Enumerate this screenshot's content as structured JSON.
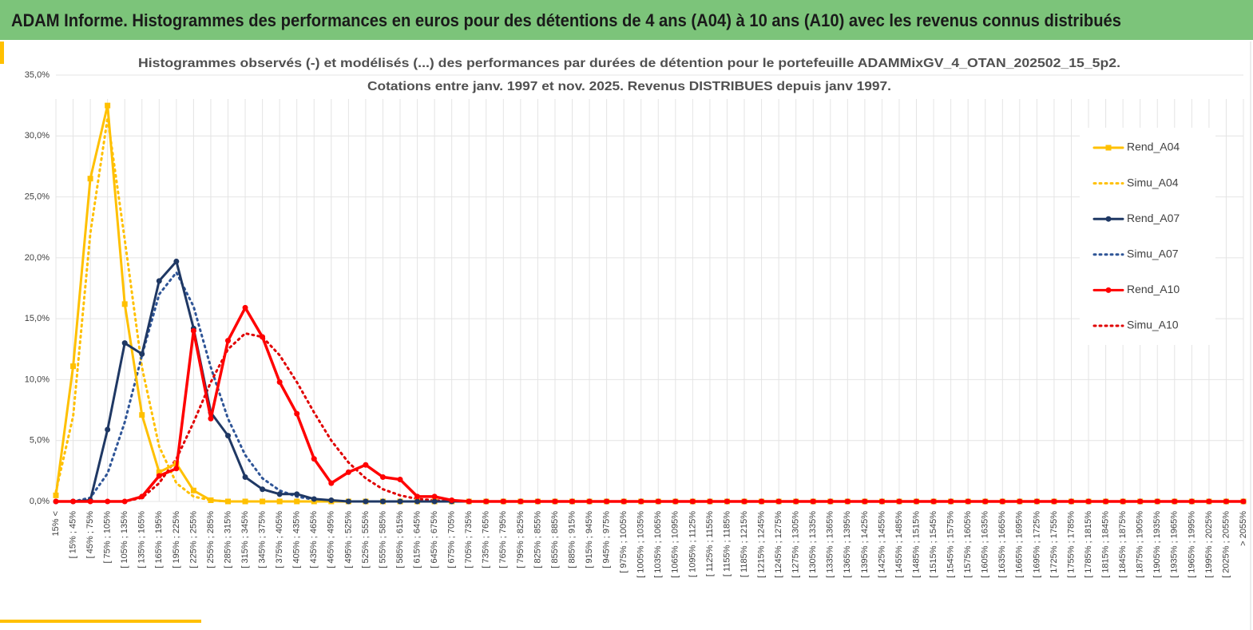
{
  "page_title": "ADAM Informe. Histogrammes des performances en euros pour des détentions de 4 ans (A04) à 10 ans (A10) avec les revenus connus distribués",
  "chart_data": {
    "type": "line",
    "title": "Histogrammes observés (-) et modélisés (...) des performances par durées de détention pour le portefeuille ADAMMixGV_4_OTAN_202502_15_5p2.",
    "subtitle": "Cotations entre janv. 1997 et nov. 2025. Revenus DISTRIBUES depuis janv 1997.",
    "categories": [
      "15% <",
      "[ 15% ; 45%",
      "[ 45% ; 75%",
      "[ 75% ; 105%",
      "[ 105% ; 135%",
      "[ 135% ; 165%",
      "[ 165% ; 195%",
      "[ 195% ; 225%",
      "[ 225% ; 255%",
      "[ 255% ; 285%",
      "[ 285% ; 315%",
      "[ 315% ; 345%",
      "[ 345% ; 375%",
      "[ 375% ; 405%",
      "[ 405% ; 435%",
      "[ 435% ; 465%",
      "[ 465% ; 495%",
      "[ 495% ; 525%",
      "[ 525% ; 555%",
      "[ 555% ; 585%",
      "[ 585% ; 615%",
      "[ 615% ; 645%",
      "[ 645% ; 675%",
      "[ 675% ; 705%",
      "[ 705% ; 735%",
      "[ 735% ; 765%",
      "[ 765% ; 795%",
      "[ 795% ; 825%",
      "[ 825% ; 855%",
      "[ 855% ; 885%",
      "[ 885% ; 915%",
      "[ 915% ; 945%",
      "[ 945% ; 975%",
      "[ 975% ; 1005%",
      "[ 1005% ; 1035%",
      "[ 1035% ; 1065%",
      "[ 1065% ; 1095%",
      "[ 1095% ; 1125%",
      "[ 1125% ; 1155%",
      "[ 1155% ; 1185%",
      "[ 1185% ; 1215%",
      "[ 1215% ; 1245%",
      "[ 1245% ; 1275%",
      "[ 1275% ; 1305%",
      "[ 1305% ; 1335%",
      "[ 1335% ; 1365%",
      "[ 1365% ; 1395%",
      "[ 1395% ; 1425%",
      "[ 1425% ; 1455%",
      "[ 1455% ; 1485%",
      "[ 1485% ; 1515%",
      "[ 1515% ; 1545%",
      "[ 1545% ; 1575%",
      "[ 1575% ; 1605%",
      "[ 1605% ; 1635%",
      "[ 1635% ; 1665%",
      "[ 1665% ; 1695%",
      "[ 1695% ; 1725%",
      "[ 1725% ; 1755%",
      "[ 1755% ; 1785%",
      "[ 1785% ; 1815%",
      "[ 1815% ; 1845%",
      "[ 1845% ; 1875%",
      "[ 1875% ; 1905%",
      "[ 1905% ; 1935%",
      "[ 1935% ; 1965%",
      "[ 1965% ; 1995%",
      "[ 1995% ; 2025%",
      "[ 2025% ; 2055%",
      "> 2055%"
    ],
    "series": [
      {
        "name": "Rend_A04",
        "color": "#ffc000",
        "dash": "solid",
        "marker": "square",
        "values": [
          0.5,
          11.1,
          26.5,
          32.5,
          16.2,
          7.1,
          2.4,
          3.1,
          0.9,
          0.1,
          0,
          0,
          0,
          0,
          0,
          0,
          0,
          0,
          0,
          0,
          0,
          0,
          0,
          0,
          0,
          0,
          0,
          0,
          0,
          0,
          0,
          0,
          0,
          0,
          0,
          0,
          0,
          0,
          0,
          0,
          0,
          0,
          0,
          0,
          0,
          0,
          0,
          0,
          0,
          0,
          0,
          0,
          0,
          0,
          0,
          0,
          0,
          0,
          0,
          0,
          0,
          0,
          0,
          0,
          0,
          0,
          0,
          0,
          0,
          0
        ]
      },
      {
        "name": "Simu_A04",
        "color": "#ffc000",
        "dash": "dotted",
        "marker": null,
        "values": [
          0.8,
          7,
          22,
          31.5,
          21.5,
          11,
          4.5,
          1.5,
          0.4,
          0.1,
          0,
          0,
          0,
          0,
          0,
          0,
          0,
          0,
          0,
          0,
          0,
          0,
          0,
          0,
          0,
          0,
          0,
          0,
          0,
          0,
          0,
          0,
          0,
          0,
          0,
          0,
          0,
          0,
          0,
          0,
          0,
          0,
          0,
          0,
          0,
          0,
          0,
          0,
          0,
          0,
          0,
          0,
          0,
          0,
          0,
          0,
          0,
          0,
          0,
          0,
          0,
          0,
          0,
          0,
          0,
          0,
          0,
          0,
          0,
          0
        ]
      },
      {
        "name": "Rend_A07",
        "color": "#1f3864",
        "dash": "solid",
        "marker": "circle",
        "values": [
          0,
          0,
          0.1,
          5.9,
          13,
          12.1,
          18.1,
          19.7,
          14.2,
          7.3,
          5.4,
          2,
          1,
          0.6,
          0.6,
          0.2,
          0.1,
          0,
          0,
          0,
          0,
          0,
          0,
          0,
          0,
          0,
          0,
          0,
          0,
          0,
          0,
          0,
          0,
          0,
          0,
          0,
          0,
          0,
          0,
          0,
          0,
          0,
          0,
          0,
          0,
          0,
          0,
          0,
          0,
          0,
          0,
          0,
          0,
          0,
          0,
          0,
          0,
          0,
          0,
          0,
          0,
          0,
          0,
          0,
          0,
          0,
          0,
          0,
          0,
          0
        ]
      },
      {
        "name": "Simu_A07",
        "color": "#2f5597",
        "dash": "dotted",
        "marker": null,
        "values": [
          0,
          0,
          0.3,
          2.3,
          6.5,
          12,
          17,
          18.8,
          16,
          11,
          6.8,
          3.8,
          1.9,
          0.9,
          0.4,
          0.15,
          0,
          0,
          0,
          0,
          0,
          0,
          0,
          0,
          0,
          0,
          0,
          0,
          0,
          0,
          0,
          0,
          0,
          0,
          0,
          0,
          0,
          0,
          0,
          0,
          0,
          0,
          0,
          0,
          0,
          0,
          0,
          0,
          0,
          0,
          0,
          0,
          0,
          0,
          0,
          0,
          0,
          0,
          0,
          0,
          0,
          0,
          0,
          0,
          0,
          0,
          0,
          0,
          0,
          0
        ]
      },
      {
        "name": "Rend_A10",
        "color": "#ff0000",
        "dash": "solid",
        "marker": "circle",
        "values": [
          0,
          0,
          0,
          0,
          0,
          0.4,
          2.1,
          2.7,
          14,
          6.8,
          13.2,
          15.9,
          13.5,
          9.8,
          7.2,
          3.5,
          1.5,
          2.4,
          3,
          2,
          1.8,
          0.4,
          0.4,
          0.1,
          0,
          0,
          0,
          0,
          0,
          0,
          0,
          0,
          0,
          0,
          0,
          0,
          0,
          0,
          0,
          0,
          0,
          0,
          0,
          0,
          0,
          0,
          0,
          0,
          0,
          0,
          0,
          0,
          0,
          0,
          0,
          0,
          0,
          0,
          0,
          0,
          0,
          0,
          0,
          0,
          0,
          0,
          0,
          0,
          0,
          0
        ]
      },
      {
        "name": "Simu_A10",
        "color": "#e00000",
        "dash": "dotted",
        "marker": null,
        "values": [
          0,
          0,
          0,
          0,
          0,
          0.3,
          1.5,
          3.5,
          6.5,
          9.8,
          12.5,
          13.8,
          13.5,
          12,
          9.8,
          7.3,
          5,
          3.2,
          1.9,
          1,
          0.5,
          0.2,
          0.1,
          0,
          0,
          0,
          0,
          0,
          0,
          0,
          0,
          0,
          0,
          0,
          0,
          0,
          0,
          0,
          0,
          0,
          0,
          0,
          0,
          0,
          0,
          0,
          0,
          0,
          0,
          0,
          0,
          0,
          0,
          0,
          0,
          0,
          0,
          0,
          0,
          0,
          0,
          0,
          0,
          0,
          0,
          0,
          0,
          0,
          0,
          0
        ]
      }
    ],
    "ylim": [
      0,
      35
    ],
    "yticks": [
      {
        "value": 0,
        "label": "0,0%"
      },
      {
        "value": 5,
        "label": "5,0%"
      },
      {
        "value": 10,
        "label": "10,0%"
      },
      {
        "value": 15,
        "label": "15,0%"
      },
      {
        "value": 20,
        "label": "20,0%"
      },
      {
        "value": 25,
        "label": "25,0%"
      },
      {
        "value": 30,
        "label": "30,0%"
      },
      {
        "value": 35,
        "label": "35,0%"
      }
    ],
    "grid": true,
    "legend": "right"
  }
}
